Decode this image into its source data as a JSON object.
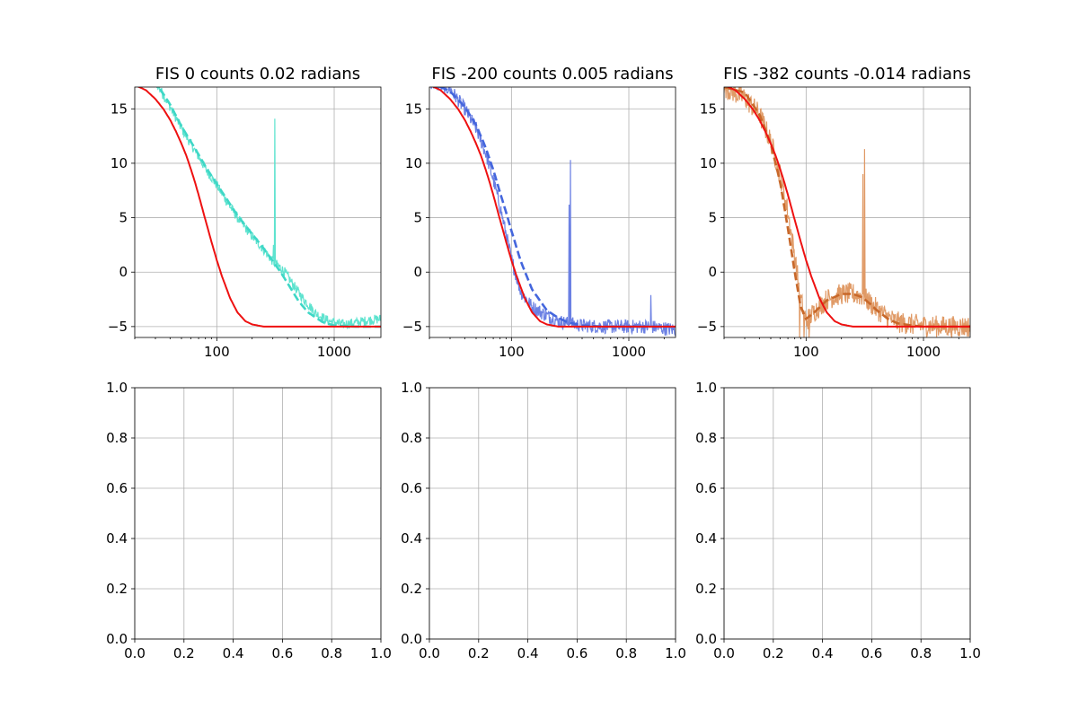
{
  "chart_data": [
    {
      "type": "line",
      "title": "FIS 0 counts 0.02 radians",
      "xscale": "log",
      "xlim": [
        20,
        2500
      ],
      "ylim": [
        -6,
        17
      ],
      "xticks": [
        100,
        1000
      ],
      "xtick_labels": [
        "100",
        "1000"
      ],
      "yticks": [
        -5,
        0,
        5,
        10,
        15
      ],
      "ytick_labels": [
        "−5",
        "0",
        "5",
        "10",
        "15"
      ],
      "grid": true,
      "series": [
        {
          "style": "noisy",
          "color": "#5ee3cf",
          "x": [
            20,
            30,
            40,
            50,
            60,
            70,
            80,
            100,
            120,
            150,
            200,
            250,
            300,
            340,
            380,
            450,
            550,
            700,
            900,
            1200,
            1600,
            2000,
            2500
          ],
          "y": [
            19,
            17.5,
            15.2,
            13.2,
            11.8,
            10.6,
            9.5,
            8.0,
            6.6,
            5.0,
            3.3,
            2.1,
            1.0,
            0.5,
            0,
            -1.2,
            -2.5,
            -3.8,
            -4.5,
            -4.8,
            -4.6,
            -4.4,
            -4.3
          ],
          "noise": 0.45,
          "spikes": [
            {
              "x": 312,
              "y": 14.1
            },
            {
              "x": 304,
              "y": 2.5
            }
          ]
        },
        {
          "style": "dashed",
          "color": "#3ed7c6",
          "x": [
            20,
            30,
            40,
            50,
            60,
            70,
            80,
            100,
            120,
            150,
            200,
            250,
            300,
            350,
            400,
            450,
            500,
            600,
            800,
            1000,
            1500,
            2500
          ],
          "y": [
            19,
            17.5,
            15.4,
            13.4,
            12.0,
            10.8,
            9.7,
            8.1,
            6.8,
            5.2,
            3.5,
            2.2,
            1.0,
            0.0,
            -1.0,
            -1.9,
            -2.7,
            -3.7,
            -4.6,
            -4.9,
            -5.0,
            -5.0
          ]
        },
        {
          "style": "solid",
          "color": "#ee1111",
          "x": [
            20,
            25,
            30,
            35,
            40,
            45,
            50,
            55,
            60,
            65,
            70,
            75,
            80,
            90,
            100,
            110,
            120,
            130,
            150,
            175,
            200,
            250,
            300,
            500,
            1000,
            2500
          ],
          "y": [
            17.2,
            16.7,
            15.9,
            15.0,
            14.0,
            12.9,
            11.8,
            10.7,
            9.5,
            8.3,
            7.1,
            5.9,
            4.8,
            2.8,
            1.1,
            -0.3,
            -1.4,
            -2.4,
            -3.7,
            -4.5,
            -4.8,
            -5.0,
            -5.0,
            -5.0,
            -5.0,
            -5.0
          ]
        }
      ]
    },
    {
      "type": "line",
      "title": "FIS -200 counts 0.005 radians",
      "xscale": "log",
      "xlim": [
        20,
        2500
      ],
      "ylim": [
        -6,
        17
      ],
      "xticks": [
        100,
        1000
      ],
      "xtick_labels": [
        "100",
        "1000"
      ],
      "yticks": [
        -5,
        0,
        5,
        10,
        15
      ],
      "ytick_labels": [
        "−5",
        "0",
        "5",
        "10",
        "15"
      ],
      "grid": true,
      "series": [
        {
          "style": "noisy",
          "color": "#6b80e3",
          "x": [
            20,
            30,
            40,
            50,
            60,
            70,
            80,
            90,
            100,
            120,
            150,
            200,
            250,
            300,
            400,
            600,
            1000,
            1500,
            2500
          ],
          "y": [
            17.5,
            16.8,
            15.0,
            13.2,
            11.0,
            8.5,
            6.0,
            3.5,
            1.2,
            -1.8,
            -3.2,
            -4.0,
            -4.5,
            -4.7,
            -4.9,
            -5.0,
            -5.0,
            -5.0,
            -5.3
          ],
          "noise": 0.65,
          "spikes": [
            {
              "x": 318,
              "y": 10.3
            },
            {
              "x": 310,
              "y": 6.2
            },
            {
              "x": 1540,
              "y": -2.1
            }
          ]
        },
        {
          "style": "dashed",
          "color": "#4466dd",
          "x": [
            20,
            30,
            40,
            50,
            60,
            70,
            80,
            90,
            100,
            120,
            150,
            200,
            250,
            300,
            400,
            600,
            1000,
            2500
          ],
          "y": [
            17.5,
            16.6,
            15.2,
            13.5,
            11.5,
            9.4,
            7.3,
            5.5,
            3.8,
            1.0,
            -1.6,
            -3.5,
            -4.2,
            -4.6,
            -4.9,
            -5.0,
            -5.0,
            -5.0
          ]
        },
        {
          "style": "solid",
          "color": "#ee1111",
          "x": [
            20,
            25,
            30,
            35,
            40,
            45,
            50,
            55,
            60,
            65,
            70,
            75,
            80,
            90,
            100,
            110,
            120,
            130,
            150,
            175,
            200,
            250,
            300,
            500,
            1000,
            2500
          ],
          "y": [
            17.2,
            16.7,
            15.9,
            15.0,
            14.0,
            12.9,
            11.8,
            10.7,
            9.5,
            8.3,
            7.1,
            5.9,
            4.8,
            2.8,
            1.1,
            -0.3,
            -1.4,
            -2.4,
            -3.7,
            -4.5,
            -4.8,
            -5.0,
            -5.0,
            -5.0,
            -5.0,
            -5.0
          ]
        }
      ]
    },
    {
      "type": "line",
      "title": "FIS -382 counts -0.014 radians",
      "xscale": "log",
      "xlim": [
        20,
        2500
      ],
      "ylim": [
        -6,
        17
      ],
      "xticks": [
        100,
        1000
      ],
      "xtick_labels": [
        "100",
        "1000"
      ],
      "yticks": [
        -5,
        0,
        5,
        10,
        15
      ],
      "ytick_labels": [
        "−5",
        "0",
        "5",
        "10",
        "15"
      ],
      "grid": true,
      "series": [
        {
          "style": "noisy",
          "color": "#e09a66",
          "x": [
            20,
            30,
            40,
            50,
            60,
            70,
            80,
            90,
            100,
            120,
            150,
            200,
            250,
            300,
            350,
            400,
            500,
            600,
            800,
            1000,
            1500,
            2500
          ],
          "y": [
            17.0,
            16.0,
            14.5,
            12.0,
            9.0,
            5.5,
            1.5,
            -2.5,
            -4.5,
            -3.5,
            -2.5,
            -2.0,
            -2.0,
            -2.2,
            -2.8,
            -3.4,
            -4.2,
            -4.6,
            -4.8,
            -4.9,
            -5.0,
            -5.0
          ],
          "noise": 1.0,
          "spikes": [
            {
              "x": 315,
              "y": 11.3
            },
            {
              "x": 305,
              "y": 9.0
            },
            {
              "x": 88,
              "y": -6.0
            },
            {
              "x": 96,
              "y": -6.0
            },
            {
              "x": 106,
              "y": -6.0
            }
          ]
        },
        {
          "style": "dashed",
          "color": "#c8682a",
          "x": [
            20,
            30,
            40,
            50,
            60,
            70,
            80,
            90,
            100,
            120,
            150,
            200,
            250,
            300,
            350,
            400,
            500,
            600,
            800,
            1000,
            1500,
            2500
          ],
          "y": [
            17.0,
            16.5,
            14.5,
            11.8,
            8.3,
            4.0,
            0.0,
            -3.2,
            -4.3,
            -3.6,
            -2.6,
            -2.0,
            -2.0,
            -2.3,
            -2.9,
            -3.5,
            -4.3,
            -4.7,
            -4.9,
            -5.0,
            -5.0,
            -5.0
          ]
        },
        {
          "style": "solid",
          "color": "#ee1111",
          "x": [
            20,
            25,
            30,
            35,
            40,
            45,
            50,
            55,
            60,
            65,
            70,
            75,
            80,
            90,
            100,
            110,
            120,
            130,
            150,
            175,
            200,
            250,
            300,
            500,
            1000,
            2500
          ],
          "y": [
            17.2,
            16.7,
            15.9,
            15.0,
            14.0,
            12.9,
            11.8,
            10.7,
            9.5,
            8.3,
            7.1,
            5.9,
            4.8,
            2.8,
            1.1,
            -0.3,
            -1.4,
            -2.4,
            -3.7,
            -4.5,
            -4.8,
            -5.0,
            -5.0,
            -5.0,
            -5.0,
            -5.0
          ]
        }
      ]
    },
    {
      "type": "line",
      "title": "",
      "xscale": "linear",
      "xlim": [
        0,
        1
      ],
      "ylim": [
        0,
        1
      ],
      "xticks": [
        0,
        0.2,
        0.4,
        0.6,
        0.8,
        1.0
      ],
      "xtick_labels": [
        "0.0",
        "0.2",
        "0.4",
        "0.6",
        "0.8",
        "1.0"
      ],
      "yticks": [
        0,
        0.2,
        0.4,
        0.6,
        0.8,
        1.0
      ],
      "ytick_labels": [
        "0.0",
        "0.2",
        "0.4",
        "0.6",
        "0.8",
        "1.0"
      ],
      "grid": true,
      "series": []
    },
    {
      "type": "line",
      "title": "",
      "xscale": "linear",
      "xlim": [
        0,
        1
      ],
      "ylim": [
        0,
        1
      ],
      "xticks": [
        0,
        0.2,
        0.4,
        0.6,
        0.8,
        1.0
      ],
      "xtick_labels": [
        "0.0",
        "0.2",
        "0.4",
        "0.6",
        "0.8",
        "1.0"
      ],
      "yticks": [
        0,
        0.2,
        0.4,
        0.6,
        0.8,
        1.0
      ],
      "ytick_labels": [
        "0.0",
        "0.2",
        "0.4",
        "0.6",
        "0.8",
        "1.0"
      ],
      "grid": true,
      "series": []
    },
    {
      "type": "line",
      "title": "",
      "xscale": "linear",
      "xlim": [
        0,
        1
      ],
      "ylim": [
        0,
        1
      ],
      "xticks": [
        0,
        0.2,
        0.4,
        0.6,
        0.8,
        1.0
      ],
      "xtick_labels": [
        "0.0",
        "0.2",
        "0.4",
        "0.6",
        "0.8",
        "1.0"
      ],
      "yticks": [
        0,
        0.2,
        0.4,
        0.6,
        0.8,
        1.0
      ],
      "ytick_labels": [
        "0.0",
        "0.2",
        "0.4",
        "0.6",
        "0.8",
        "1.0"
      ],
      "grid": true,
      "series": []
    }
  ]
}
